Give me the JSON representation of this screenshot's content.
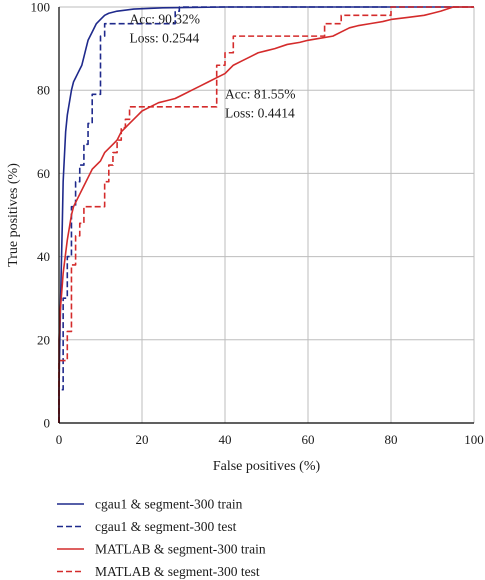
{
  "chart_data": {
    "type": "line",
    "xlabel": "False positives (%)",
    "ylabel": "True positives (%)",
    "xlim": [
      0,
      100
    ],
    "ylim": [
      0,
      100
    ],
    "xticks": [
      "0",
      "20",
      "40",
      "60",
      "80",
      "100"
    ],
    "yticks": [
      "0",
      "20",
      "40",
      "60",
      "80",
      "100"
    ],
    "grid": true,
    "legend_position": "bottom",
    "annotations": [
      {
        "lines": [
          "Acc: 90.32%",
          "Loss: 0.2544"
        ],
        "at": [
          17,
          97
        ]
      },
      {
        "lines": [
          "Acc: 81.55%",
          "Loss: 0.4414"
        ],
        "at": [
          40,
          79
        ]
      }
    ],
    "series": [
      {
        "name": "cgau1 & segment-300 train",
        "color": "#1f2a8c",
        "dash": "solid",
        "points": [
          [
            0,
            0
          ],
          [
            0,
            8
          ],
          [
            0.2,
            20
          ],
          [
            0.5,
            35
          ],
          [
            0.8,
            48
          ],
          [
            1.0,
            58
          ],
          [
            1.3,
            64
          ],
          [
            1.6,
            70
          ],
          [
            2.0,
            74
          ],
          [
            2.5,
            77
          ],
          [
            3.0,
            80
          ],
          [
            3.5,
            82
          ],
          [
            4.0,
            83
          ],
          [
            4.5,
            84
          ],
          [
            5.0,
            85
          ],
          [
            5.5,
            86
          ],
          [
            6.0,
            88
          ],
          [
            6.5,
            90
          ],
          [
            7.0,
            92
          ],
          [
            7.5,
            93
          ],
          [
            8.0,
            94
          ],
          [
            9.0,
            96
          ],
          [
            10.0,
            97
          ],
          [
            11.0,
            98
          ],
          [
            12.0,
            98.5
          ],
          [
            14.0,
            99
          ],
          [
            18.0,
            99.5
          ],
          [
            25.0,
            99.8
          ],
          [
            40.0,
            100
          ],
          [
            100,
            100
          ]
        ]
      },
      {
        "name": "cgau1 & segment-300 test",
        "color": "#1f2a8c",
        "dash": "dashed",
        "points": [
          [
            0,
            0
          ],
          [
            0,
            8
          ],
          [
            1,
            8
          ],
          [
            1,
            30
          ],
          [
            2,
            30
          ],
          [
            2,
            40
          ],
          [
            3,
            40
          ],
          [
            3,
            52
          ],
          [
            4,
            52
          ],
          [
            4,
            58
          ],
          [
            5,
            58
          ],
          [
            5,
            62
          ],
          [
            6,
            62
          ],
          [
            6,
            67
          ],
          [
            7,
            67
          ],
          [
            7,
            72
          ],
          [
            8,
            72
          ],
          [
            8,
            79
          ],
          [
            10,
            79
          ],
          [
            10,
            93
          ],
          [
            11,
            93
          ],
          [
            11,
            96
          ],
          [
            28,
            96
          ],
          [
            28,
            99
          ],
          [
            29,
            99
          ],
          [
            29,
            100
          ],
          [
            100,
            100
          ]
        ]
      },
      {
        "name": "MATLAB & segment-300 train",
        "color": "#d42b2b",
        "dash": "solid",
        "points": [
          [
            0,
            0
          ],
          [
            0,
            20
          ],
          [
            0.3,
            27
          ],
          [
            0.7,
            32
          ],
          [
            1.0,
            36
          ],
          [
            1.5,
            40
          ],
          [
            2.0,
            44
          ],
          [
            2.5,
            47
          ],
          [
            3.0,
            50
          ],
          [
            3.5,
            52
          ],
          [
            4.0,
            53
          ],
          [
            5.0,
            55
          ],
          [
            6.0,
            57
          ],
          [
            7.0,
            59
          ],
          [
            8.0,
            61
          ],
          [
            9.0,
            62
          ],
          [
            10.0,
            63
          ],
          [
            11.0,
            65
          ],
          [
            12.0,
            66
          ],
          [
            13.0,
            67
          ],
          [
            14.0,
            68
          ],
          [
            15.0,
            70
          ],
          [
            16.0,
            71
          ],
          [
            17.0,
            72
          ],
          [
            18.0,
            73
          ],
          [
            19.0,
            74
          ],
          [
            20.0,
            75
          ],
          [
            22.0,
            76
          ],
          [
            24.0,
            77
          ],
          [
            26.0,
            77.5
          ],
          [
            28.0,
            78
          ],
          [
            30.0,
            79
          ],
          [
            32.0,
            80
          ],
          [
            34.0,
            81
          ],
          [
            36.0,
            82
          ],
          [
            38.0,
            83
          ],
          [
            40.0,
            84
          ],
          [
            42.0,
            86
          ],
          [
            44.0,
            87
          ],
          [
            46.0,
            88
          ],
          [
            48.0,
            89
          ],
          [
            50.0,
            89.5
          ],
          [
            52.0,
            90
          ],
          [
            55.0,
            91
          ],
          [
            58.0,
            91.5
          ],
          [
            60.0,
            92
          ],
          [
            63.0,
            92.5
          ],
          [
            66.0,
            93
          ],
          [
            68.0,
            94
          ],
          [
            70.0,
            95
          ],
          [
            72.0,
            95.5
          ],
          [
            75.0,
            96
          ],
          [
            78.0,
            96.5
          ],
          [
            80.0,
            97
          ],
          [
            84.0,
            97.5
          ],
          [
            88.0,
            98
          ],
          [
            90.0,
            98.5
          ],
          [
            92.0,
            99
          ],
          [
            95.0,
            100
          ],
          [
            100,
            100
          ]
        ]
      },
      {
        "name": "MATLAB & segment-300 test",
        "color": "#d42b2b",
        "dash": "dashed",
        "points": [
          [
            0,
            0
          ],
          [
            0,
            15
          ],
          [
            2,
            15
          ],
          [
            2,
            22
          ],
          [
            3,
            22
          ],
          [
            3,
            38
          ],
          [
            4,
            38
          ],
          [
            4,
            45
          ],
          [
            5,
            45
          ],
          [
            5,
            48
          ],
          [
            6,
            48
          ],
          [
            6,
            52
          ],
          [
            11,
            52
          ],
          [
            11,
            58
          ],
          [
            12,
            58
          ],
          [
            12,
            62
          ],
          [
            13,
            62
          ],
          [
            13,
            65
          ],
          [
            14,
            65
          ],
          [
            14,
            68
          ],
          [
            15,
            68
          ],
          [
            15,
            71
          ],
          [
            16,
            71
          ],
          [
            16,
            73
          ],
          [
            17,
            73
          ],
          [
            17,
            76
          ],
          [
            38,
            76
          ],
          [
            38,
            86
          ],
          [
            40,
            86
          ],
          [
            40,
            89
          ],
          [
            42,
            89
          ],
          [
            42,
            93
          ],
          [
            64,
            93
          ],
          [
            64,
            96
          ],
          [
            68,
            96
          ],
          [
            68,
            98
          ],
          [
            80,
            98
          ],
          [
            80,
            100
          ],
          [
            100,
            100
          ]
        ]
      }
    ]
  }
}
